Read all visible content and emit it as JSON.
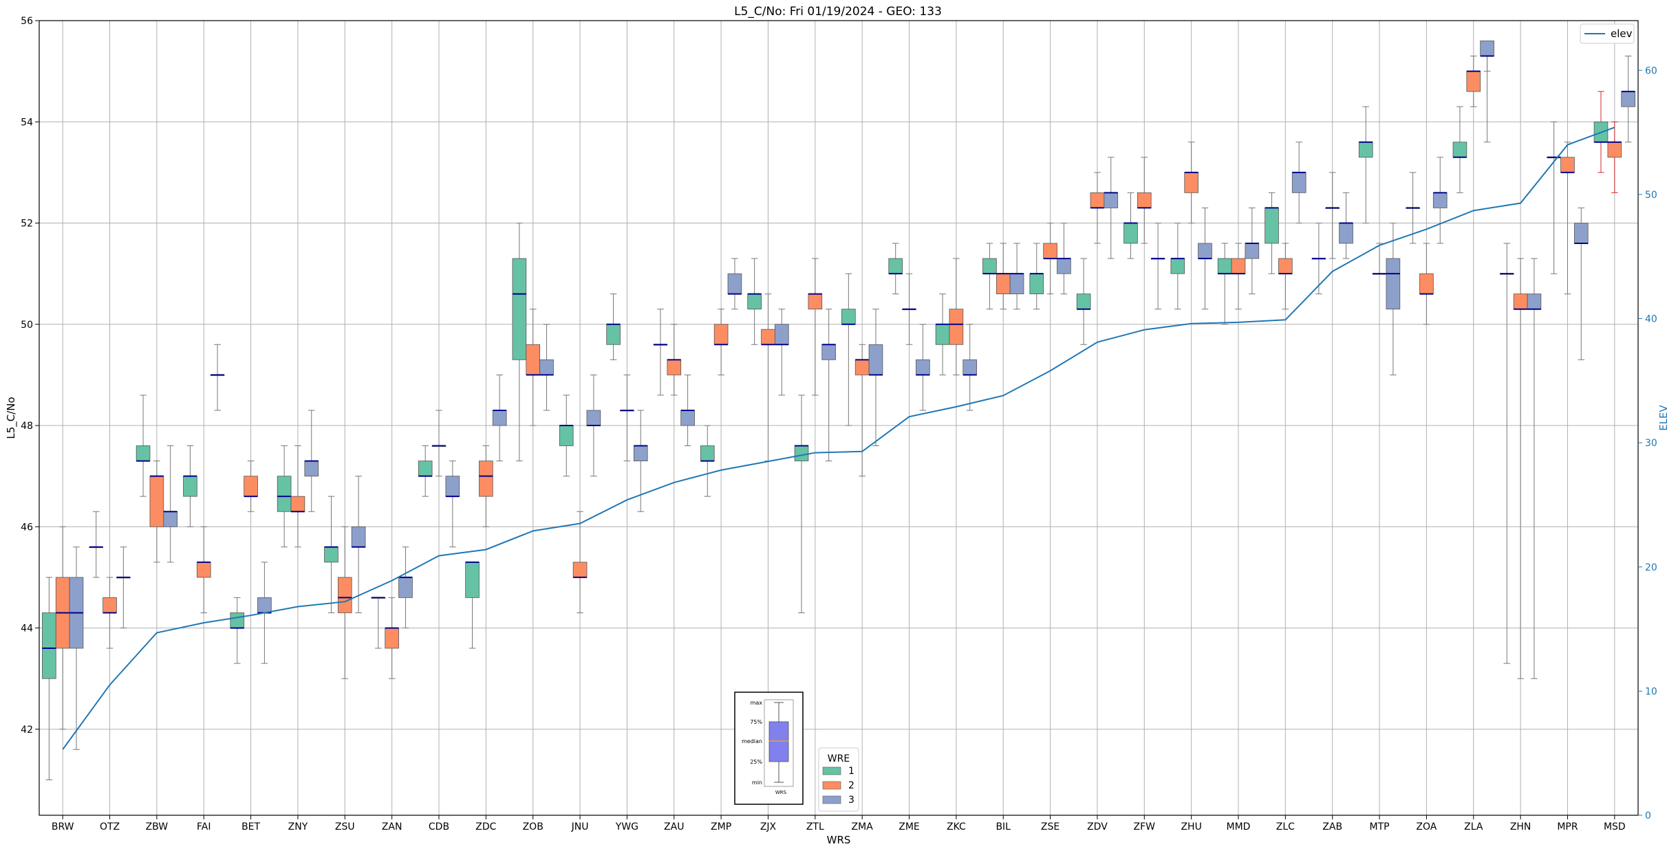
{
  "chart_data": {
    "type": "boxplot",
    "title": "L5_C/No: Fri 01/19/2024 - GEO: 133",
    "xlabel": "WRS",
    "ylabel": "L5_C/No",
    "y2label": "ELEV",
    "ylim": [
      40.3,
      56
    ],
    "y2lim": [
      0,
      64
    ],
    "yticks": [
      42,
      44,
      46,
      48,
      50,
      52,
      54,
      56
    ],
    "y2ticks": [
      0,
      10,
      20,
      30,
      40,
      50,
      60
    ],
    "grid": true,
    "colors": {
      "wre1": "#66c2a5",
      "wre2": "#fc8d62",
      "wre3": "#8da0cb",
      "elev": "#1f77b4",
      "median": "#00008b",
      "whisker": "#777777",
      "outlier_whisker": "#d62728"
    },
    "categories": [
      "BRW",
      "OTZ",
      "ZBW",
      "FAI",
      "BET",
      "ZNY",
      "ZSU",
      "ZAN",
      "CDB",
      "ZDC",
      "ZOB",
      "JNU",
      "YWG",
      "ZAU",
      "ZMP",
      "ZJX",
      "ZTL",
      "ZMA",
      "ZME",
      "ZKC",
      "BIL",
      "ZSE",
      "ZDV",
      "ZFW",
      "ZHU",
      "MMD",
      "ZLC",
      "ZAB",
      "MTP",
      "ZOA",
      "ZLA",
      "ZHN",
      "MPR",
      "MSD"
    ],
    "series": [
      {
        "name": "1",
        "boxes": [
          [
            41.0,
            43.0,
            43.6,
            44.3,
            45.0
          ],
          [
            45.0,
            45.6,
            45.6,
            45.6,
            46.3
          ],
          [
            46.6,
            47.3,
            47.3,
            47.6,
            48.6
          ],
          [
            46.0,
            46.6,
            47.0,
            47.0,
            47.6
          ],
          [
            43.3,
            44.0,
            44.0,
            44.3,
            44.6
          ],
          [
            45.6,
            46.3,
            46.6,
            47.0,
            47.6
          ],
          [
            44.3,
            45.3,
            45.6,
            45.6,
            46.6
          ],
          [
            43.6,
            44.6,
            44.6,
            44.6,
            44.6
          ],
          [
            46.6,
            47.0,
            47.0,
            47.3,
            47.6
          ],
          [
            43.6,
            44.6,
            45.3,
            45.3,
            45.3
          ],
          [
            47.3,
            49.3,
            50.6,
            51.3,
            52.0
          ],
          [
            47.0,
            47.6,
            48.0,
            48.0,
            48.6
          ],
          [
            49.3,
            49.6,
            50.0,
            50.0,
            50.6
          ],
          [
            48.6,
            49.6,
            49.6,
            49.6,
            50.3
          ],
          [
            46.6,
            47.3,
            47.3,
            47.6,
            48.0
          ],
          [
            49.6,
            50.3,
            50.6,
            50.6,
            51.3
          ],
          [
            44.3,
            47.3,
            47.6,
            47.6,
            48.6
          ],
          [
            48.0,
            50.0,
            50.0,
            50.3,
            51.0
          ],
          [
            50.6,
            51.0,
            51.0,
            51.3,
            51.6
          ],
          [
            49.0,
            49.6,
            50.0,
            50.0,
            50.6
          ],
          [
            50.3,
            51.0,
            51.0,
            51.3,
            51.6
          ],
          [
            50.3,
            50.6,
            51.0,
            51.0,
            51.6
          ],
          [
            49.6,
            50.3,
            50.3,
            50.6,
            51.3
          ],
          [
            51.3,
            51.6,
            52.0,
            52.0,
            52.6
          ],
          [
            50.3,
            51.0,
            51.3,
            51.3,
            52.0
          ],
          [
            50.0,
            51.0,
            51.0,
            51.3,
            51.6
          ],
          [
            51.0,
            51.6,
            52.3,
            52.3,
            52.6
          ],
          [
            50.6,
            51.3,
            51.3,
            51.3,
            52.0
          ],
          [
            52.0,
            53.3,
            53.6,
            53.6,
            54.3
          ],
          [
            51.6,
            52.3,
            52.3,
            52.3,
            53.0
          ],
          [
            52.6,
            53.3,
            53.3,
            53.6,
            54.3
          ],
          [
            43.3,
            51.0,
            51.0,
            51.0,
            51.6
          ],
          [
            51.0,
            53.3,
            53.3,
            53.3,
            54.0
          ],
          [
            53.0,
            53.6,
            53.6,
            54.0,
            54.6
          ]
        ]
      },
      {
        "name": "2",
        "boxes": [
          [
            42.0,
            43.6,
            44.3,
            45.0,
            46.0
          ],
          [
            43.6,
            44.3,
            44.3,
            44.6,
            45.0
          ],
          [
            45.3,
            46.0,
            47.0,
            47.0,
            47.3
          ],
          [
            44.3,
            45.0,
            45.3,
            45.3,
            46.0
          ],
          [
            46.3,
            46.6,
            46.6,
            47.0,
            47.3
          ],
          [
            45.6,
            46.3,
            46.3,
            46.6,
            47.6
          ],
          [
            43.0,
            44.3,
            44.6,
            45.0,
            46.0
          ],
          [
            43.0,
            43.6,
            44.0,
            44.0,
            44.6
          ],
          [
            47.0,
            47.6,
            47.6,
            47.6,
            48.3
          ],
          [
            46.0,
            46.6,
            47.0,
            47.3,
            47.6
          ],
          [
            48.0,
            49.0,
            49.0,
            49.6,
            50.3
          ],
          [
            44.3,
            45.0,
            45.0,
            45.3,
            46.3
          ],
          [
            47.3,
            48.3,
            48.3,
            48.3,
            49.0
          ],
          [
            48.6,
            49.0,
            49.3,
            49.3,
            50.0
          ],
          [
            49.0,
            49.6,
            49.6,
            50.0,
            50.3
          ],
          [
            47.3,
            49.6,
            49.6,
            49.9,
            50.6
          ],
          [
            48.6,
            50.3,
            50.6,
            50.6,
            51.3
          ],
          [
            47.0,
            49.0,
            49.3,
            49.3,
            49.6
          ],
          [
            49.6,
            50.3,
            50.3,
            50.3,
            51.0
          ],
          [
            49.0,
            49.6,
            50.0,
            50.3,
            51.3
          ],
          [
            50.3,
            50.6,
            51.0,
            51.0,
            51.6
          ],
          [
            50.6,
            51.3,
            51.3,
            51.6,
            52.0
          ],
          [
            51.6,
            52.3,
            52.3,
            52.6,
            53.0
          ],
          [
            51.6,
            52.3,
            52.3,
            52.6,
            53.3
          ],
          [
            52.0,
            52.6,
            53.0,
            53.0,
            53.6
          ],
          [
            50.3,
            51.0,
            51.0,
            51.3,
            51.6
          ],
          [
            50.3,
            51.0,
            51.0,
            51.3,
            51.6
          ],
          [
            51.3,
            52.3,
            52.3,
            52.3,
            53.0
          ],
          [
            51.0,
            51.0,
            51.0,
            51.0,
            51.6
          ],
          [
            50.0,
            50.6,
            50.6,
            51.0,
            51.6
          ],
          [
            54.3,
            54.6,
            55.0,
            55.0,
            55.3
          ],
          [
            43.0,
            50.3,
            50.3,
            50.6,
            51.3
          ],
          [
            50.6,
            53.0,
            53.0,
            53.3,
            53.6
          ],
          [
            52.6,
            53.3,
            53.6,
            53.6,
            54.0
          ]
        ]
      },
      {
        "name": "3",
        "boxes": [
          [
            41.6,
            43.6,
            44.3,
            45.0,
            45.6
          ],
          [
            44.0,
            45.0,
            45.0,
            45.0,
            45.6
          ],
          [
            45.3,
            46.0,
            46.3,
            46.3,
            47.6
          ],
          [
            48.3,
            49.0,
            49.0,
            49.0,
            49.6
          ],
          [
            43.3,
            44.3,
            44.3,
            44.6,
            45.3
          ],
          [
            46.3,
            47.0,
            47.3,
            47.3,
            48.3
          ],
          [
            44.3,
            45.6,
            45.6,
            46.0,
            47.0
          ],
          [
            44.0,
            44.6,
            45.0,
            45.0,
            45.6
          ],
          [
            45.6,
            46.6,
            46.6,
            47.0,
            47.3
          ],
          [
            47.3,
            48.0,
            48.3,
            48.3,
            49.0
          ],
          [
            48.3,
            49.0,
            49.0,
            49.3,
            50.0
          ],
          [
            47.0,
            48.0,
            48.0,
            48.3,
            49.0
          ],
          [
            46.3,
            47.3,
            47.6,
            47.6,
            48.3
          ],
          [
            47.6,
            48.0,
            48.3,
            48.3,
            49.0
          ],
          [
            50.3,
            50.6,
            50.6,
            51.0,
            51.3
          ],
          [
            48.6,
            49.6,
            49.6,
            50.0,
            50.3
          ],
          [
            47.3,
            49.3,
            49.6,
            49.6,
            50.3
          ],
          [
            47.6,
            49.0,
            49.0,
            49.6,
            50.3
          ],
          [
            48.3,
            49.0,
            49.0,
            49.3,
            50.0
          ],
          [
            48.3,
            49.0,
            49.0,
            49.3,
            50.0
          ],
          [
            50.3,
            50.6,
            51.0,
            51.0,
            51.6
          ],
          [
            50.6,
            51.0,
            51.3,
            51.3,
            52.0
          ],
          [
            51.3,
            52.3,
            52.6,
            52.6,
            53.3
          ],
          [
            50.3,
            51.3,
            51.3,
            51.3,
            52.0
          ],
          [
            50.3,
            51.3,
            51.3,
            51.6,
            52.3
          ],
          [
            50.6,
            51.3,
            51.6,
            51.6,
            52.3
          ],
          [
            52.0,
            52.6,
            53.0,
            53.0,
            53.6
          ],
          [
            51.3,
            51.6,
            52.0,
            52.0,
            52.6
          ],
          [
            49.0,
            50.3,
            51.0,
            51.3,
            52.0
          ],
          [
            51.6,
            52.3,
            52.6,
            52.6,
            53.3
          ],
          [
            53.6,
            55.3,
            55.3,
            55.6,
            55.0
          ],
          [
            43.0,
            50.3,
            50.3,
            50.6,
            51.3
          ],
          [
            49.3,
            51.6,
            51.6,
            52.0,
            52.3
          ],
          [
            53.6,
            54.3,
            54.6,
            54.6,
            55.3
          ]
        ]
      }
    ],
    "elev": {
      "name": "elev",
      "values": [
        5.3,
        10.5,
        14.7,
        15.5,
        16.1,
        16.8,
        17.2,
        18.9,
        20.9,
        21.4,
        22.9,
        23.5,
        25.4,
        26.8,
        27.8,
        28.5,
        29.2,
        29.3,
        32.1,
        32.9,
        33.8,
        35.8,
        38.1,
        39.1,
        39.6,
        39.7,
        39.9,
        43.8,
        45.9,
        47.2,
        48.7,
        49.3,
        54.0,
        55.4
      ]
    },
    "legend_elev": {
      "label": "elev",
      "placement": "upper right"
    },
    "legend_wre": {
      "title": "WRE",
      "labels": [
        "1",
        "2",
        "3"
      ],
      "placement": "lower center"
    },
    "inset_key": {
      "labels": [
        "max",
        "75%",
        "median",
        "25%",
        "min"
      ],
      "xlabel": "WRS",
      "box_color": "#8080ee",
      "median_color": "#e9a030"
    }
  }
}
